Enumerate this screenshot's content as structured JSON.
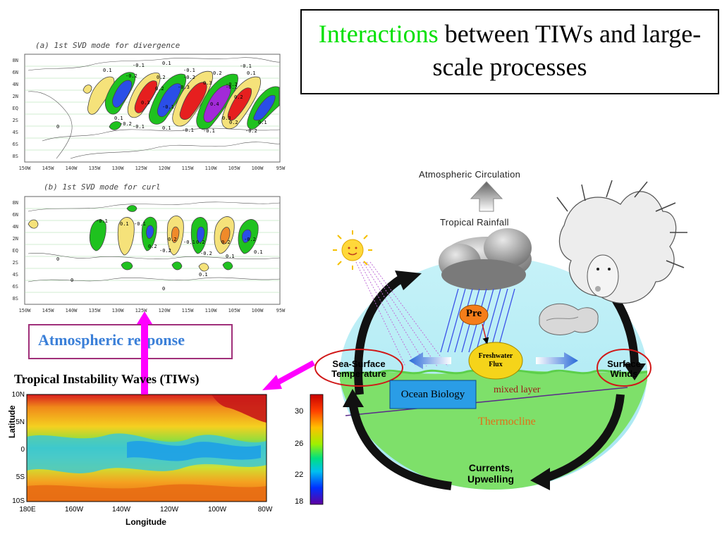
{
  "title": {
    "part1": "Interactions",
    "part2": " between TIWs and large-scale processes"
  },
  "panel_a": {
    "heading": "(a) 1st SVD mode for divergence",
    "lat_ticks": [
      "8N",
      "6N",
      "4N",
      "2N",
      "EQ",
      "2S",
      "4S",
      "6S",
      "8S"
    ],
    "lon_ticks": [
      "150W",
      "145W",
      "140W",
      "135W",
      "130W",
      "125W",
      "120W",
      "115W",
      "110W",
      "105W",
      "100W",
      "95W"
    ],
    "labels": [
      "0.1",
      "-0.1",
      "0.1",
      "-0.2",
      "0.2",
      "-0.1",
      "-0.2",
      "0.2",
      "-0.1",
      "0.1",
      "0.2",
      "-0.3",
      "0.3",
      "-0.3",
      "0.3",
      "0.4",
      "-0.1",
      "-0.2",
      "0.2",
      "0.1",
      "-0.1",
      "0.3",
      "-0.2",
      "-0.1",
      "0.1",
      "-0.1",
      "0.2",
      "0.1",
      "-0.2",
      "0"
    ]
  },
  "panel_b": {
    "heading": "(b) 1st SVD mode for curl",
    "lat_ticks": [
      "8N",
      "6N",
      "4N",
      "2N",
      "EQ",
      "2S",
      "4S",
      "6S",
      "8S"
    ],
    "lon_ticks": [
      "150W",
      "145W",
      "140W",
      "135W",
      "130W",
      "125W",
      "120W",
      "115W",
      "110W",
      "105W",
      "100W",
      "95W"
    ],
    "labels": [
      "-0.1",
      "0.1",
      "0.2",
      "-0.2",
      "0.2",
      "-0.2",
      "0.2",
      "-0.1",
      "0.1",
      "0",
      "0",
      "-0.1",
      "0.2",
      "-0.2",
      "0.1",
      "0.1",
      "0"
    ]
  },
  "atmospheric_response": "Atmospheric response",
  "tiw_title": "Tropical Instability Waves (TIWs)",
  "sst_map": {
    "y_label": "Latitude",
    "x_label": "Longitude",
    "lat_ticks": [
      "10N",
      "5N",
      "0",
      "5S",
      "10S"
    ],
    "lon_ticks": [
      "180E",
      "160W",
      "140W",
      "120W",
      "100W",
      "80W"
    ],
    "colorbar_ticks": [
      "30",
      "26",
      "22",
      "18"
    ]
  },
  "diagram": {
    "atmospheric_circulation": "Atmospheric Circulation",
    "tropical_rainfall": "Tropical Rainfall",
    "pre": "Pre",
    "freshwater_flux": [
      "Freshwater",
      "Flux"
    ],
    "sst": [
      "Sea-Surface",
      "Temperature"
    ],
    "surface_winds": [
      "Surface",
      "Winds"
    ],
    "ocean_biology": "Ocean Biology",
    "mixed_layer": "mixed layer",
    "thermocline": "Thermocline",
    "currents": [
      "Currents,",
      "Upwelling"
    ]
  },
  "colors": {
    "highlight": "#00e000",
    "response_text": "#3a7fd8",
    "response_border": "#a0307a",
    "arrow_magenta": "#ff00ff",
    "ocean_top": "#bff0f6",
    "ocean_bottom": "#7ee06a"
  }
}
